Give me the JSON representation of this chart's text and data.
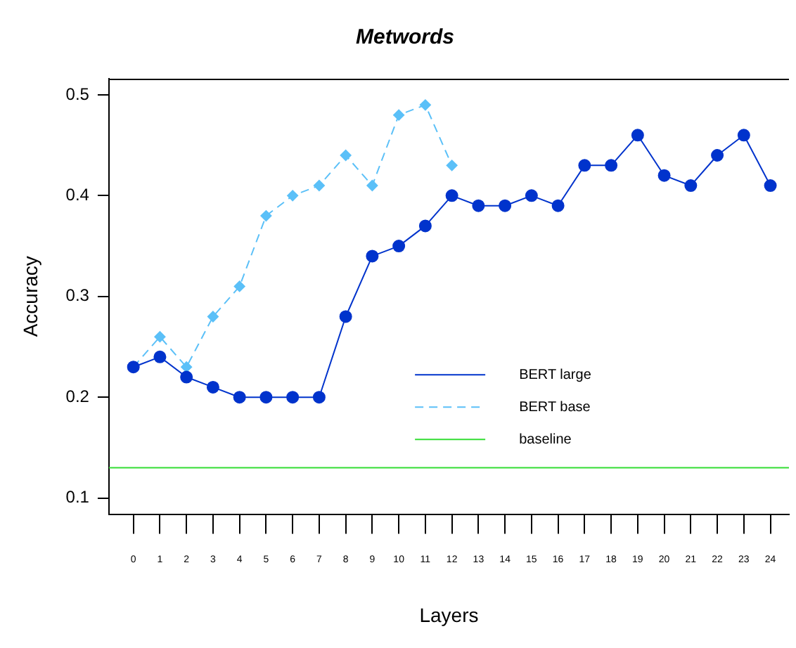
{
  "chart_data": {
    "type": "line",
    "title": "Metwords",
    "xlabel": "Layers",
    "ylabel": "Accuracy",
    "x": [
      0,
      1,
      2,
      3,
      4,
      5,
      6,
      7,
      8,
      9,
      10,
      11,
      12,
      13,
      14,
      15,
      16,
      17,
      18,
      19,
      20,
      21,
      22,
      23,
      24
    ],
    "xlim": [
      -0.92,
      24.7
    ],
    "xticks": [
      0,
      1,
      2,
      3,
      4,
      5,
      6,
      7,
      8,
      9,
      10,
      11,
      12,
      13,
      14,
      15,
      16,
      17,
      18,
      19,
      20,
      21,
      22,
      23,
      24
    ],
    "ylim": [
      0.084,
      0.516
    ],
    "yticks": [
      0.1,
      0.2,
      0.3,
      0.4,
      0.5
    ],
    "series": [
      {
        "name": "BERT large",
        "color": "#0033cc",
        "marker": "circle",
        "line_style": "solid",
        "values": [
          0.23,
          0.24,
          0.22,
          0.21,
          0.2,
          0.2,
          0.2,
          0.2,
          0.28,
          0.34,
          0.35,
          0.37,
          0.4,
          0.39,
          0.39,
          0.4,
          0.39,
          0.43,
          0.43,
          0.46,
          0.42,
          0.41,
          0.44,
          0.46,
          0.41
        ]
      },
      {
        "name": "BERT base",
        "color": "#5bc0f8",
        "marker": "diamond",
        "line_style": "dashed",
        "values": [
          0.23,
          0.26,
          0.23,
          0.28,
          0.31,
          0.38,
          0.4,
          0.41,
          0.44,
          0.41,
          0.48,
          0.49,
          0.43,
          null,
          null,
          null,
          null,
          null,
          null,
          null,
          null,
          null,
          null,
          null,
          null
        ]
      }
    ],
    "ref_lines": [
      {
        "axis": "y",
        "value": 0.13,
        "label": "baseline",
        "color": "#33dd33"
      }
    ],
    "legend": "bottom",
    "grid": false
  }
}
